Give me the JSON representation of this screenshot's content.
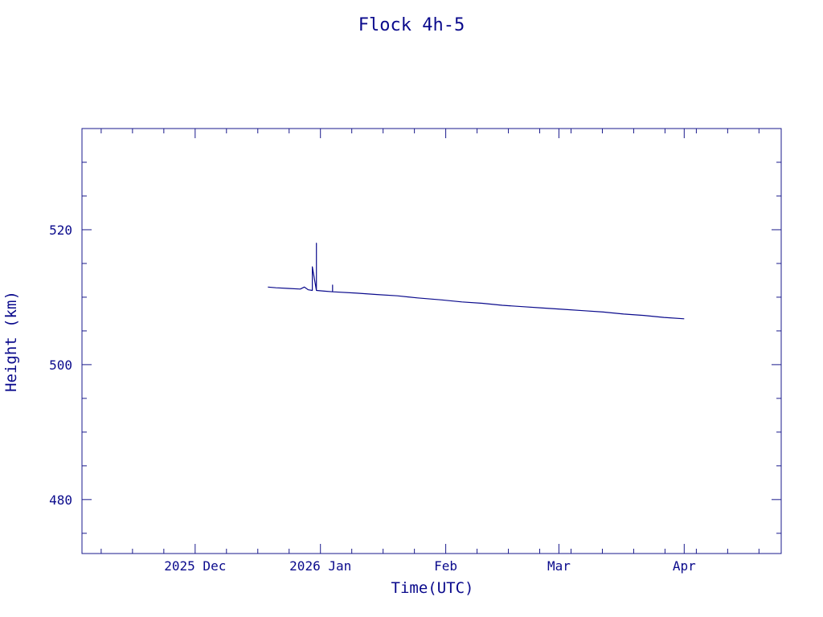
{
  "colors": {
    "axis": "#1a1a8c",
    "line": "#0a0a8c",
    "background": "#ffffff"
  },
  "chart_data": {
    "type": "line",
    "title": "Flock 4h-5",
    "xlabel": "Time(UTC)",
    "ylabel": "Height (km)",
    "x_type": "date",
    "xlim": [
      "2025-11-03",
      "2026-04-25"
    ],
    "ylim": [
      472,
      535
    ],
    "grid": false,
    "legend": "none",
    "x_major_ticks": [
      {
        "date": "2025-12-01",
        "label": "2025 Dec"
      },
      {
        "date": "2026-01-01",
        "label": "2026 Jan"
      },
      {
        "date": "2026-02-01",
        "label": "Feb"
      },
      {
        "date": "2026-03-01",
        "label": "Mar"
      },
      {
        "date": "2026-04-01",
        "label": "Apr"
      }
    ],
    "y_major_ticks": [
      480,
      500,
      520
    ],
    "series": [
      {
        "points": [
          [
            "2025-12-19",
            511.5
          ],
          [
            "2025-12-21",
            511.4
          ],
          [
            "2025-12-24",
            511.3
          ],
          [
            "2025-12-27",
            511.2
          ],
          [
            "2025-12-28",
            511.5
          ],
          [
            "2025-12-29",
            511.1
          ],
          [
            "2025-12-30",
            511.0
          ],
          [
            "2025-12-30",
            514.5
          ],
          [
            "2025-12-31",
            511.0
          ],
          [
            "2025-12-31",
            518.0
          ],
          [
            "2025-12-31",
            511.0
          ],
          [
            "2026-01-02",
            510.9
          ],
          [
            "2026-01-04",
            510.8
          ],
          [
            "2026-01-04",
            511.8
          ],
          [
            "2026-01-04",
            510.8
          ],
          [
            "2026-01-10",
            510.6
          ],
          [
            "2026-01-15",
            510.4
          ],
          [
            "2026-01-20",
            510.2
          ],
          [
            "2026-01-25",
            509.9
          ],
          [
            "2026-01-31",
            509.6
          ],
          [
            "2026-02-05",
            509.3
          ],
          [
            "2026-02-10",
            509.1
          ],
          [
            "2026-02-15",
            508.8
          ],
          [
            "2026-02-20",
            508.6
          ],
          [
            "2026-02-25",
            508.4
          ],
          [
            "2026-03-02",
            508.2
          ],
          [
            "2026-03-07",
            508.0
          ],
          [
            "2026-03-12",
            507.8
          ],
          [
            "2026-03-17",
            507.5
          ],
          [
            "2026-03-22",
            507.3
          ],
          [
            "2026-03-27",
            507.0
          ],
          [
            "2026-04-01",
            506.8
          ]
        ]
      }
    ]
  }
}
